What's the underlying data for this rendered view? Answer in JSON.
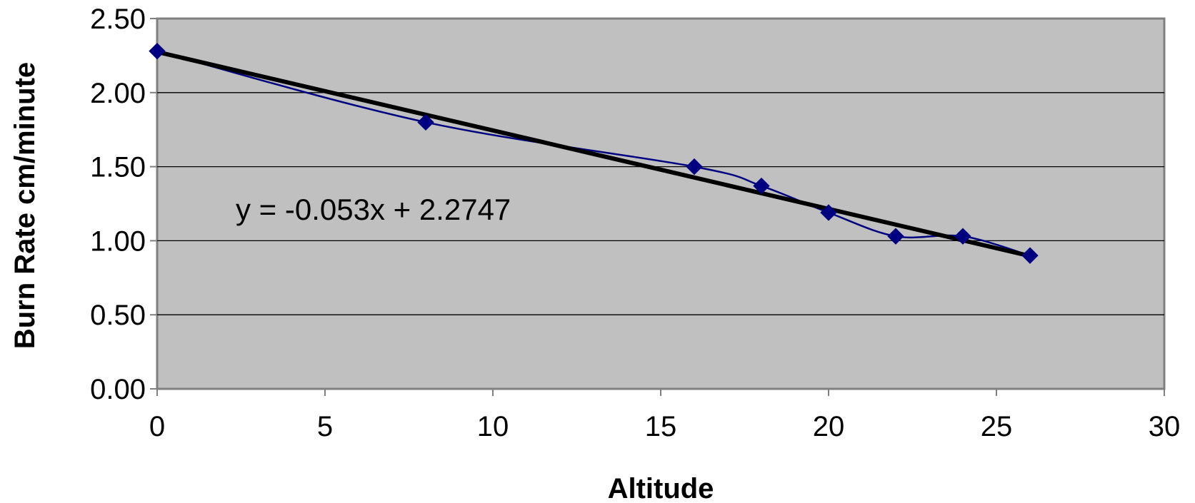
{
  "chart_data": {
    "type": "scatter",
    "title": "",
    "xlabel": "Altitude",
    "ylabel": "Burn Rate  cm/minute",
    "xlim": [
      0,
      30
    ],
    "ylim": [
      0,
      2.5
    ],
    "x_ticks": [
      "0",
      "5",
      "10",
      "15",
      "20",
      "25",
      "30"
    ],
    "y_ticks": [
      "0.00",
      "0.50",
      "1.00",
      "1.50",
      "2.00",
      "2.50"
    ],
    "grid": "horizontal",
    "legend": "none",
    "series": [
      {
        "style": "smoothed line with diamond markers",
        "color": "#000080",
        "x": [
          0,
          8,
          16,
          18,
          20,
          22,
          24,
          26
        ],
        "y": [
          2.28,
          1.8,
          1.5,
          1.37,
          1.19,
          1.03,
          1.03,
          0.9
        ]
      }
    ],
    "trendline": {
      "type": "linear",
      "slope": -0.053,
      "intercept": 2.2747,
      "x_range": [
        0,
        26
      ],
      "color": "#000000"
    },
    "annotations": [
      {
        "text": "y = -0.053x + 2.2747"
      }
    ],
    "colors": {
      "plot_background": "#c0c0c0",
      "grid": "#000000",
      "axis": "#808080",
      "series": "#000080",
      "trendline": "#000000"
    }
  }
}
